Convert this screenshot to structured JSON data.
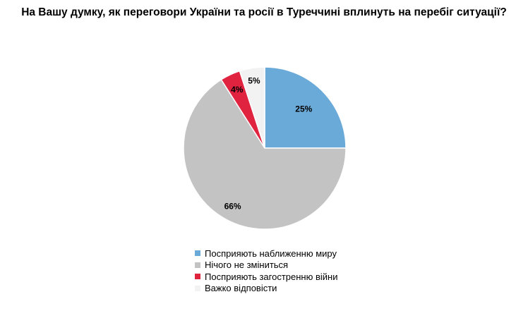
{
  "chart_data": {
    "type": "pie",
    "title": "На Вашу думку, як переговори України та росії в Туреччині вплинуть на перебіг ситуації?",
    "categories": [
      "Посприяють наближенню миру",
      "Нічого не зміниться",
      "Посприяють загостренню війни",
      "Важко відповісти"
    ],
    "values": [
      25,
      66,
      4,
      5
    ],
    "labels": [
      "25%",
      "66%",
      "4%",
      "5%"
    ],
    "colors": [
      "#6aaad9",
      "#c3c3c3",
      "#e0233f",
      "#f2f2f2"
    ],
    "legend_position": "bottom"
  }
}
